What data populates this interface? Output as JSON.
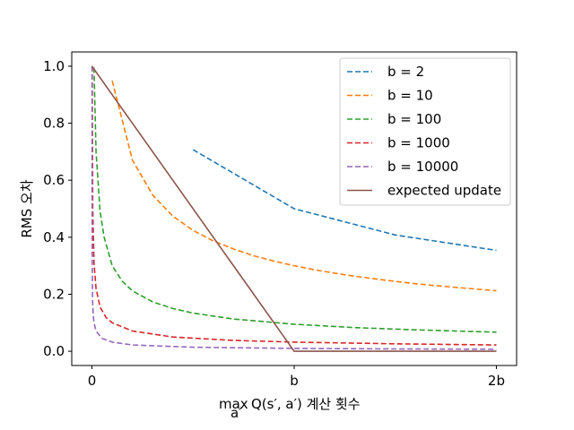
{
  "chart_data": {
    "type": "line",
    "xlabel_main": "Q(s′, a′) 계산 횟수",
    "xlabel_max": "max",
    "xlabel_sub": "a′",
    "ylabel": "RMS 오차",
    "x_ticks": [
      {
        "value": 0,
        "label": "0"
      },
      {
        "value": 1,
        "label": "b"
      },
      {
        "value": 2,
        "label": "2b"
      }
    ],
    "y_ticks": [
      {
        "value": 0.0,
        "label": "0.0"
      },
      {
        "value": 0.2,
        "label": "0.2"
      },
      {
        "value": 0.4,
        "label": "0.4"
      },
      {
        "value": 0.6,
        "label": "0.6"
      },
      {
        "value": 0.8,
        "label": "0.8"
      },
      {
        "value": 1.0,
        "label": "1.0"
      }
    ],
    "xlim": [
      -0.1,
      2.1
    ],
    "ylim": [
      -0.05,
      1.05
    ],
    "grid": false,
    "legend_position": "top-right",
    "series": [
      {
        "name": "b = 2",
        "color": "#1f77b4",
        "dash": true,
        "x": [
          0.5,
          1.0,
          1.5,
          2.0
        ],
        "y": [
          0.707,
          0.5,
          0.408,
          0.354
        ]
      },
      {
        "name": "b = 10",
        "color": "#ff7f0e",
        "dash": true,
        "x": [
          0.1,
          0.2,
          0.3,
          0.4,
          0.5,
          0.6,
          0.7,
          0.8,
          0.9,
          1.0,
          1.1,
          1.2,
          1.3,
          1.4,
          1.5,
          1.6,
          1.7,
          1.8,
          1.9,
          2.0
        ],
        "y": [
          0.949,
          0.671,
          0.548,
          0.474,
          0.424,
          0.387,
          0.359,
          0.335,
          0.316,
          0.3,
          0.286,
          0.274,
          0.263,
          0.254,
          0.245,
          0.237,
          0.23,
          0.224,
          0.218,
          0.212
        ]
      },
      {
        "name": "b = 100",
        "color": "#2ca02c",
        "dash": true,
        "x": [
          0.01,
          0.02,
          0.04,
          0.06,
          0.1,
          0.15,
          0.2,
          0.3,
          0.4,
          0.5,
          0.7,
          1.0,
          1.3,
          1.6,
          2.0
        ],
        "y": [
          0.995,
          0.7,
          0.49,
          0.4,
          0.3,
          0.245,
          0.212,
          0.173,
          0.15,
          0.134,
          0.113,
          0.095,
          0.083,
          0.075,
          0.067
        ]
      },
      {
        "name": "b = 1000",
        "color": "#d62728",
        "dash": true,
        "x": [
          0.001,
          0.004,
          0.01,
          0.02,
          0.04,
          0.07,
          0.1,
          0.2,
          0.4,
          0.7,
          1.0,
          1.5,
          2.0
        ],
        "y": [
          1.0,
          0.5,
          0.31,
          0.22,
          0.155,
          0.118,
          0.1,
          0.071,
          0.05,
          0.038,
          0.032,
          0.026,
          0.022
        ]
      },
      {
        "name": "b = 10000",
        "color": "#9467bd",
        "dash": true,
        "x": [
          0.0001,
          0.001,
          0.003,
          0.006,
          0.01,
          0.02,
          0.05,
          0.1,
          0.2,
          0.5,
          1.0,
          1.5,
          2.0
        ],
        "y": [
          1.0,
          0.32,
          0.18,
          0.13,
          0.1,
          0.071,
          0.045,
          0.032,
          0.022,
          0.014,
          0.01,
          0.008,
          0.007
        ]
      },
      {
        "name": "expected update",
        "color": "#8c564b",
        "dash": false,
        "x": [
          0,
          1.0,
          2.0
        ],
        "y": [
          1.0,
          0.0,
          0.0
        ]
      }
    ]
  }
}
